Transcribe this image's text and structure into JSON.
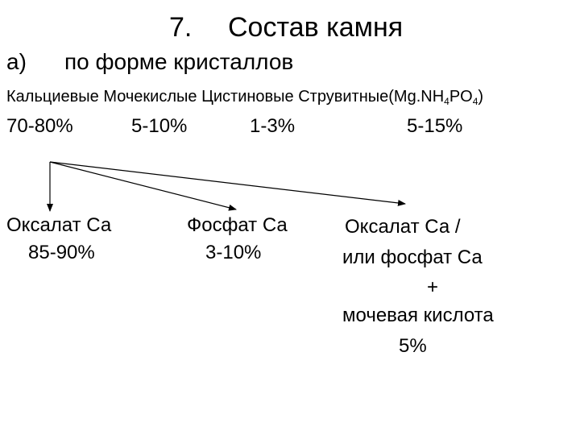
{
  "title": {
    "number": "7.",
    "text": "Состав камня"
  },
  "subtitle": {
    "letter": "а)",
    "text": "по форме кристаллов"
  },
  "stone_types": {
    "calcium": "Кальциевые",
    "uric": "Мочекислые",
    "cystine": "Цистиновые",
    "struvite": "Струвитные",
    "formula": {
      "open": "(Mg.NH",
      "sub1": "4",
      "mid": "PO",
      "sub2": "4",
      "close": ")"
    }
  },
  "percentages": {
    "calcium": "70-80%",
    "uric": "5-10%",
    "cystine": "1-3%",
    "struvite": "5-15%"
  },
  "results": {
    "oxalate": {
      "name": "Оксалат Са",
      "pct": "85-90%"
    },
    "phosphate": {
      "name": "Фосфат Са",
      "pct": "3-10%"
    },
    "mixed": {
      "line1": "Оксалат Са /",
      "line2": "или фосфат Са",
      "plus": "+",
      "line3": "мочевая кислота",
      "pct": "5%"
    }
  }
}
